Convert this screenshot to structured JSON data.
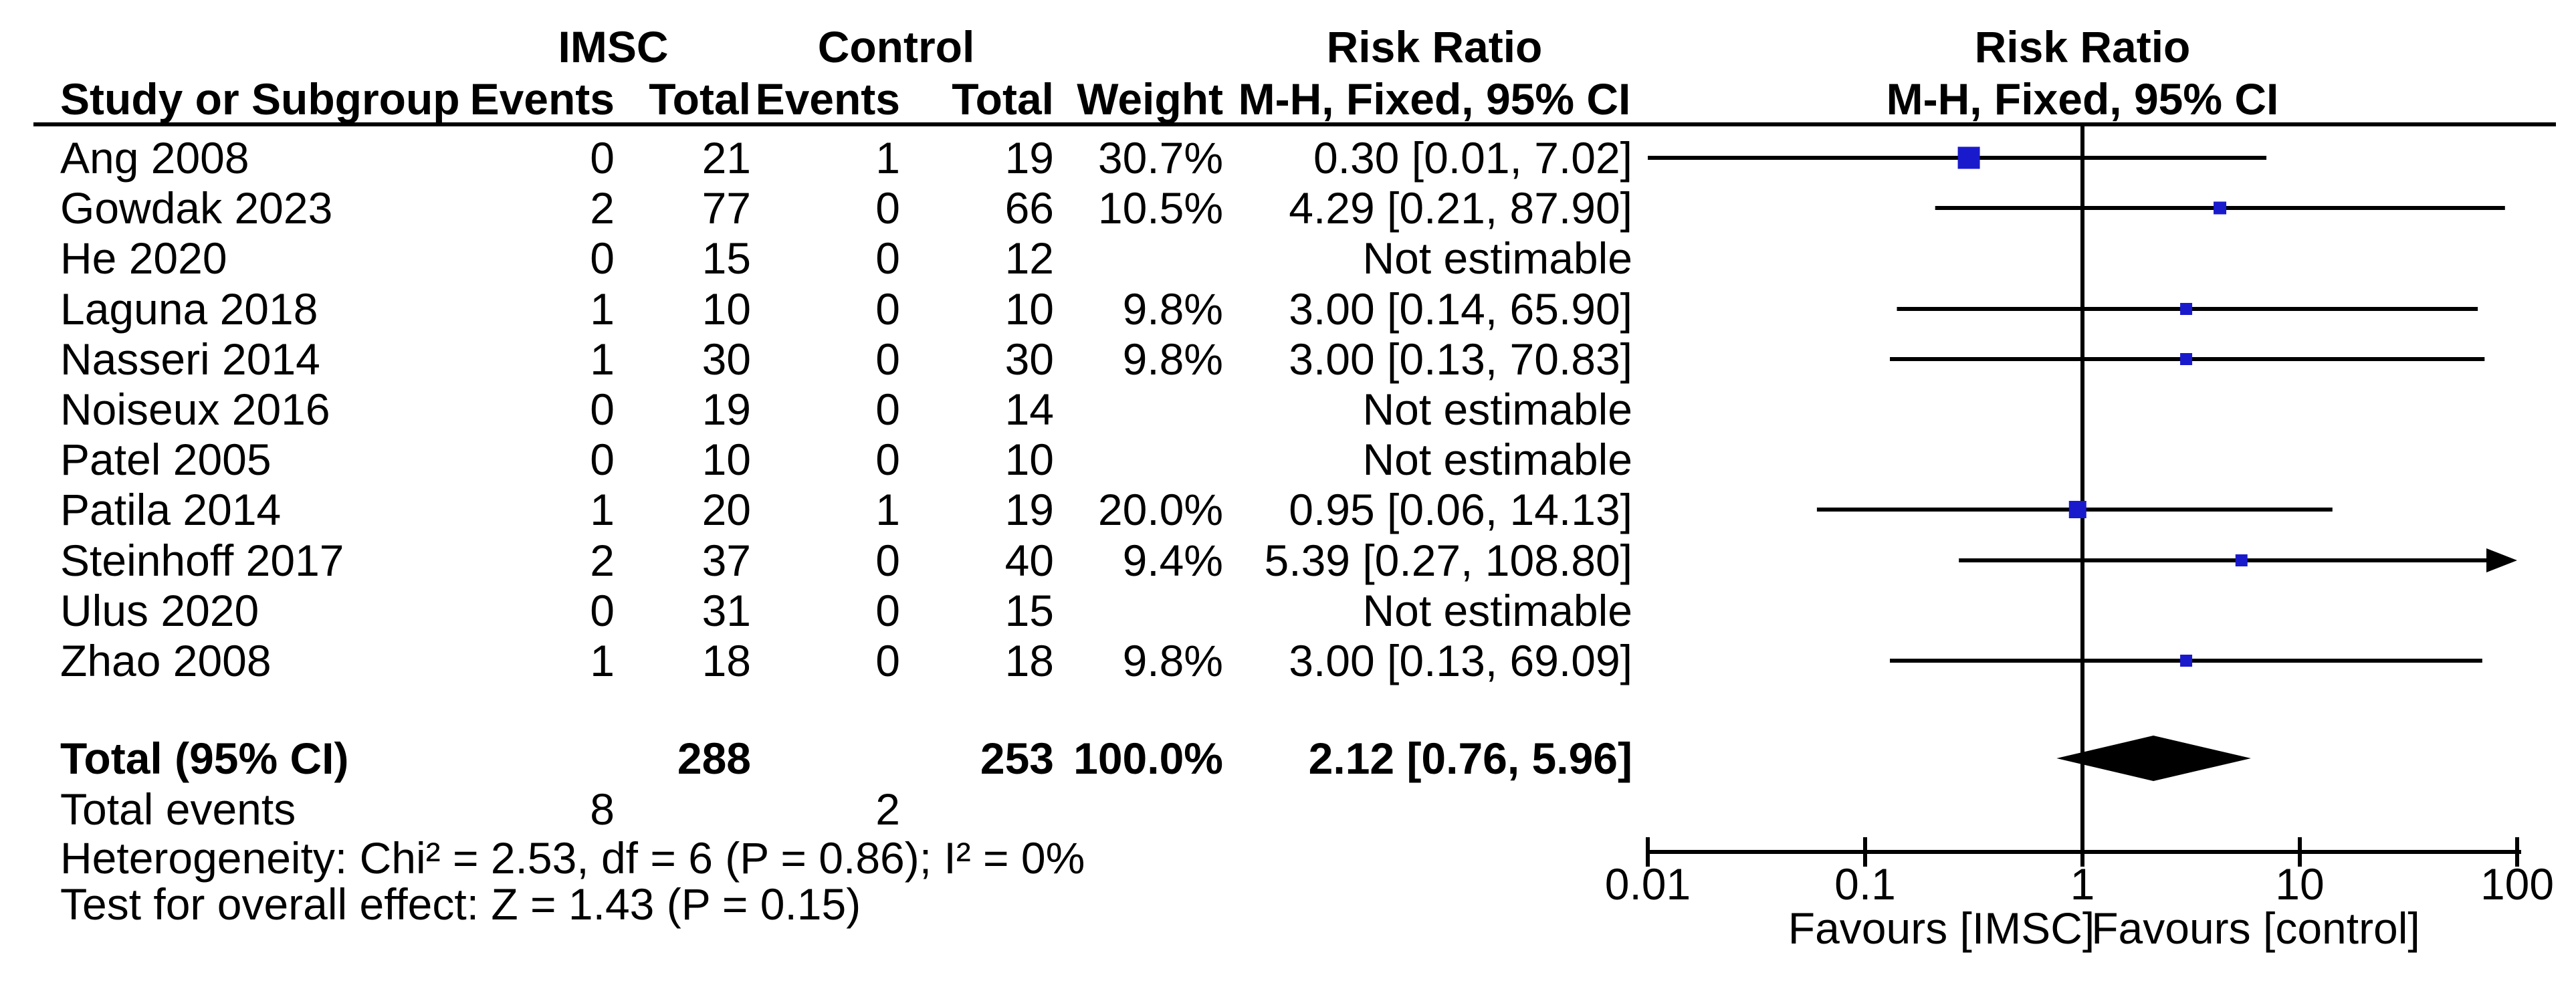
{
  "table": {
    "col1_header": "Study or Subgroup",
    "group_headers": {
      "imsc": "IMSC",
      "control": "Control",
      "risk_ratio": "Risk Ratio",
      "risk_ratio_plot": "Risk Ratio"
    },
    "sub_headers": {
      "events_imsc": "Events",
      "total_imsc": "Total",
      "events_control": "Events",
      "total_control": "Total",
      "weight": "Weight",
      "mh_fixed": "M-H, Fixed, 95% CI",
      "mh_fixed_plot": "M-H, Fixed, 95% CI"
    },
    "rows": [
      {
        "study": "Ang 2008",
        "events1": "0",
        "total1": "21",
        "events2": "1",
        "total2": "19",
        "weight": "30.7%",
        "rr_text": "0.30 [0.01, 7.02]"
      },
      {
        "study": "Gowdak 2023",
        "events1": "2",
        "total1": "77",
        "events2": "0",
        "total2": "66",
        "weight": "10.5%",
        "rr_text": "4.29 [0.21, 87.90]"
      },
      {
        "study": "He 2020",
        "events1": "0",
        "total1": "15",
        "events2": "0",
        "total2": "12",
        "weight": "",
        "rr_text": "Not estimable"
      },
      {
        "study": "Laguna 2018",
        "events1": "1",
        "total1": "10",
        "events2": "0",
        "total2": "10",
        "weight": "9.8%",
        "rr_text": "3.00 [0.14, 65.90]"
      },
      {
        "study": "Nasseri 2014",
        "events1": "1",
        "total1": "30",
        "events2": "0",
        "total2": "30",
        "weight": "9.8%",
        "rr_text": "3.00 [0.13, 70.83]"
      },
      {
        "study": "Noiseux 2016",
        "events1": "0",
        "total1": "19",
        "events2": "0",
        "total2": "14",
        "weight": "",
        "rr_text": "Not estimable"
      },
      {
        "study": "Patel 2005",
        "events1": "0",
        "total1": "10",
        "events2": "0",
        "total2": "10",
        "weight": "",
        "rr_text": "Not estimable"
      },
      {
        "study": "Patila 2014",
        "events1": "1",
        "total1": "20",
        "events2": "1",
        "total2": "19",
        "weight": "20.0%",
        "rr_text": "0.95 [0.06, 14.13]"
      },
      {
        "study": "Steinhoff 2017",
        "events1": "2",
        "total1": "37",
        "events2": "0",
        "total2": "40",
        "weight": "9.4%",
        "rr_text": "5.39 [0.27, 108.80]"
      },
      {
        "study": "Ulus 2020",
        "events1": "0",
        "total1": "31",
        "events2": "0",
        "total2": "15",
        "weight": "",
        "rr_text": "Not estimable"
      },
      {
        "study": "Zhao 2008",
        "events1": "1",
        "total1": "18",
        "events2": "0",
        "total2": "18",
        "weight": "9.8%",
        "rr_text": "3.00 [0.13, 69.09]"
      }
    ],
    "total_row": {
      "label": "Total (95% CI)",
      "total1": "288",
      "total2": "253",
      "weight": "100.0%",
      "rr_text": "2.12 [0.76, 5.96]"
    },
    "total_events": {
      "label": "Total events",
      "events1": "8",
      "events2": "2"
    },
    "heterogeneity": "Heterogeneity: Chi² = 2.53, df = 6 (P = 0.86); I² = 0%",
    "overall_effect": "Test for overall effect: Z = 1.43 (P = 0.15)"
  },
  "chart_data": {
    "type": "forest",
    "effect_measure": "Risk Ratio",
    "method": "M-H, Fixed, 95% CI",
    "x_axis": {
      "scale": "log",
      "min": 0.01,
      "max": 100,
      "ticks": [
        "0.01",
        "0.1",
        "1",
        "10",
        "100"
      ]
    },
    "favours": {
      "left": "Favours [IMSC]",
      "right": "Favours [control]"
    },
    "studies": [
      {
        "name": "Ang 2008",
        "estimable": true,
        "rr": 0.3,
        "ci_low": 0.01,
        "ci_high": 7.02,
        "weight_pct": 30.7
      },
      {
        "name": "Gowdak 2023",
        "estimable": true,
        "rr": 4.29,
        "ci_low": 0.21,
        "ci_high": 87.9,
        "weight_pct": 10.5
      },
      {
        "name": "He 2020",
        "estimable": false
      },
      {
        "name": "Laguna 2018",
        "estimable": true,
        "rr": 3.0,
        "ci_low": 0.14,
        "ci_high": 65.9,
        "weight_pct": 9.8
      },
      {
        "name": "Nasseri 2014",
        "estimable": true,
        "rr": 3.0,
        "ci_low": 0.13,
        "ci_high": 70.83,
        "weight_pct": 9.8
      },
      {
        "name": "Noiseux 2016",
        "estimable": false
      },
      {
        "name": "Patel 2005",
        "estimable": false
      },
      {
        "name": "Patila 2014",
        "estimable": true,
        "rr": 0.95,
        "ci_low": 0.06,
        "ci_high": 14.13,
        "weight_pct": 20.0
      },
      {
        "name": "Steinhoff 2017",
        "estimable": true,
        "rr": 5.39,
        "ci_low": 0.27,
        "ci_high": 108.8,
        "weight_pct": 9.4
      },
      {
        "name": "Ulus 2020",
        "estimable": false
      },
      {
        "name": "Zhao 2008",
        "estimable": true,
        "rr": 3.0,
        "ci_low": 0.13,
        "ci_high": 69.09,
        "weight_pct": 9.8
      }
    ],
    "total": {
      "rr": 2.12,
      "ci_low": 0.76,
      "ci_high": 5.96
    }
  },
  "colors": {
    "marker_blue": "#1a1acd",
    "line_black": "#000000"
  }
}
